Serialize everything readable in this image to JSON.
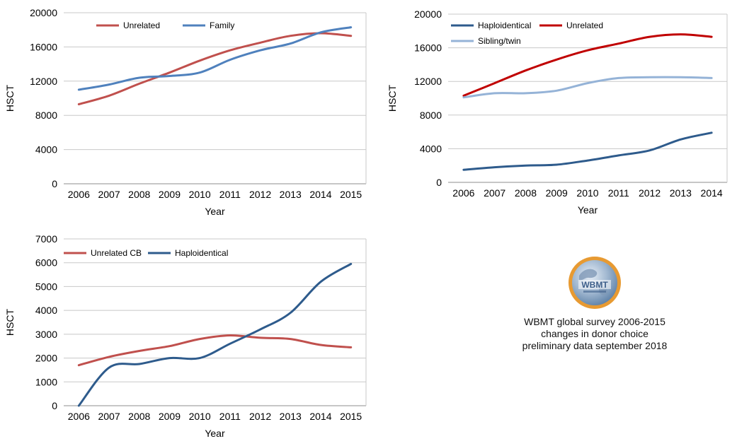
{
  "caption": {
    "line1": "WBMT global survey 2006-2015",
    "line2": "changes in donor choice",
    "line3": "preliminary data september 2018"
  },
  "logo": {
    "text": "WBMT",
    "icon": "wbmt-globe-logo"
  },
  "colors": {
    "red": "#c0504d",
    "blue": "#4f81bd",
    "darkblue": "#2e5b8c",
    "darkred": "#c00000",
    "lightblue": "#95b3d7",
    "grid": "#c8c8c8"
  },
  "chart_data": [
    {
      "type": "line",
      "xlabel": "Year",
      "ylabel": "HSCT",
      "ylim": [
        0,
        20000
      ],
      "yticks": [
        0,
        4000,
        8000,
        12000,
        16000,
        20000
      ],
      "categories": [
        "2006",
        "2007",
        "2008",
        "2009",
        "2010",
        "2011",
        "2012",
        "2013",
        "2014",
        "2015"
      ],
      "grid": true,
      "legend": "top-left",
      "series": [
        {
          "name": "Unrelated",
          "color": "#c0504d",
          "values": [
            9300,
            10300,
            11700,
            13000,
            14400,
            15600,
            16500,
            17300,
            17600,
            17300
          ]
        },
        {
          "name": "Family",
          "color": "#4f81bd",
          "values": [
            11000,
            11600,
            12400,
            12600,
            13000,
            14500,
            15600,
            16400,
            17700,
            18300
          ]
        }
      ]
    },
    {
      "type": "line",
      "xlabel": "Year",
      "ylabel": "HSCT",
      "ylim": [
        0,
        20000
      ],
      "yticks": [
        0,
        4000,
        8000,
        12000,
        16000,
        20000
      ],
      "categories": [
        "2006",
        "2007",
        "2008",
        "2009",
        "2010",
        "2011",
        "2012",
        "2013",
        "2014"
      ],
      "grid": true,
      "legend": "top-left",
      "series": [
        {
          "name": "Haploidentical",
          "color": "#2e5b8c",
          "values": [
            1500,
            1800,
            2000,
            2100,
            2600,
            3200,
            3800,
            5100,
            5900
          ]
        },
        {
          "name": "Unrelated",
          "color": "#c00000",
          "values": [
            10300,
            11800,
            13300,
            14600,
            15700,
            16500,
            17300,
            17600,
            17300
          ]
        },
        {
          "name": "Sibling/twin",
          "color": "#95b3d7",
          "values": [
            10100,
            10600,
            10600,
            10900,
            11800,
            12400,
            12500,
            12500,
            12400
          ]
        }
      ]
    },
    {
      "type": "line",
      "xlabel": "Year",
      "ylabel": "HSCT",
      "ylim": [
        0,
        7000
      ],
      "yticks": [
        0,
        1000,
        2000,
        3000,
        4000,
        5000,
        6000,
        7000
      ],
      "categories": [
        "2006",
        "2007",
        "2008",
        "2009",
        "2010",
        "2011",
        "2012",
        "2013",
        "2014",
        "2015"
      ],
      "grid": true,
      "legend": "top-left",
      "series": [
        {
          "name": "Unrelated CB",
          "color": "#c0504d",
          "values": [
            1700,
            2050,
            2300,
            2500,
            2800,
            2950,
            2850,
            2800,
            2550,
            2450
          ]
        },
        {
          "name": "Haploidentical",
          "color": "#2e5b8c",
          "values": [
            0,
            1600,
            1750,
            2000,
            2000,
            2600,
            3200,
            3900,
            5200,
            5950
          ]
        }
      ]
    }
  ]
}
